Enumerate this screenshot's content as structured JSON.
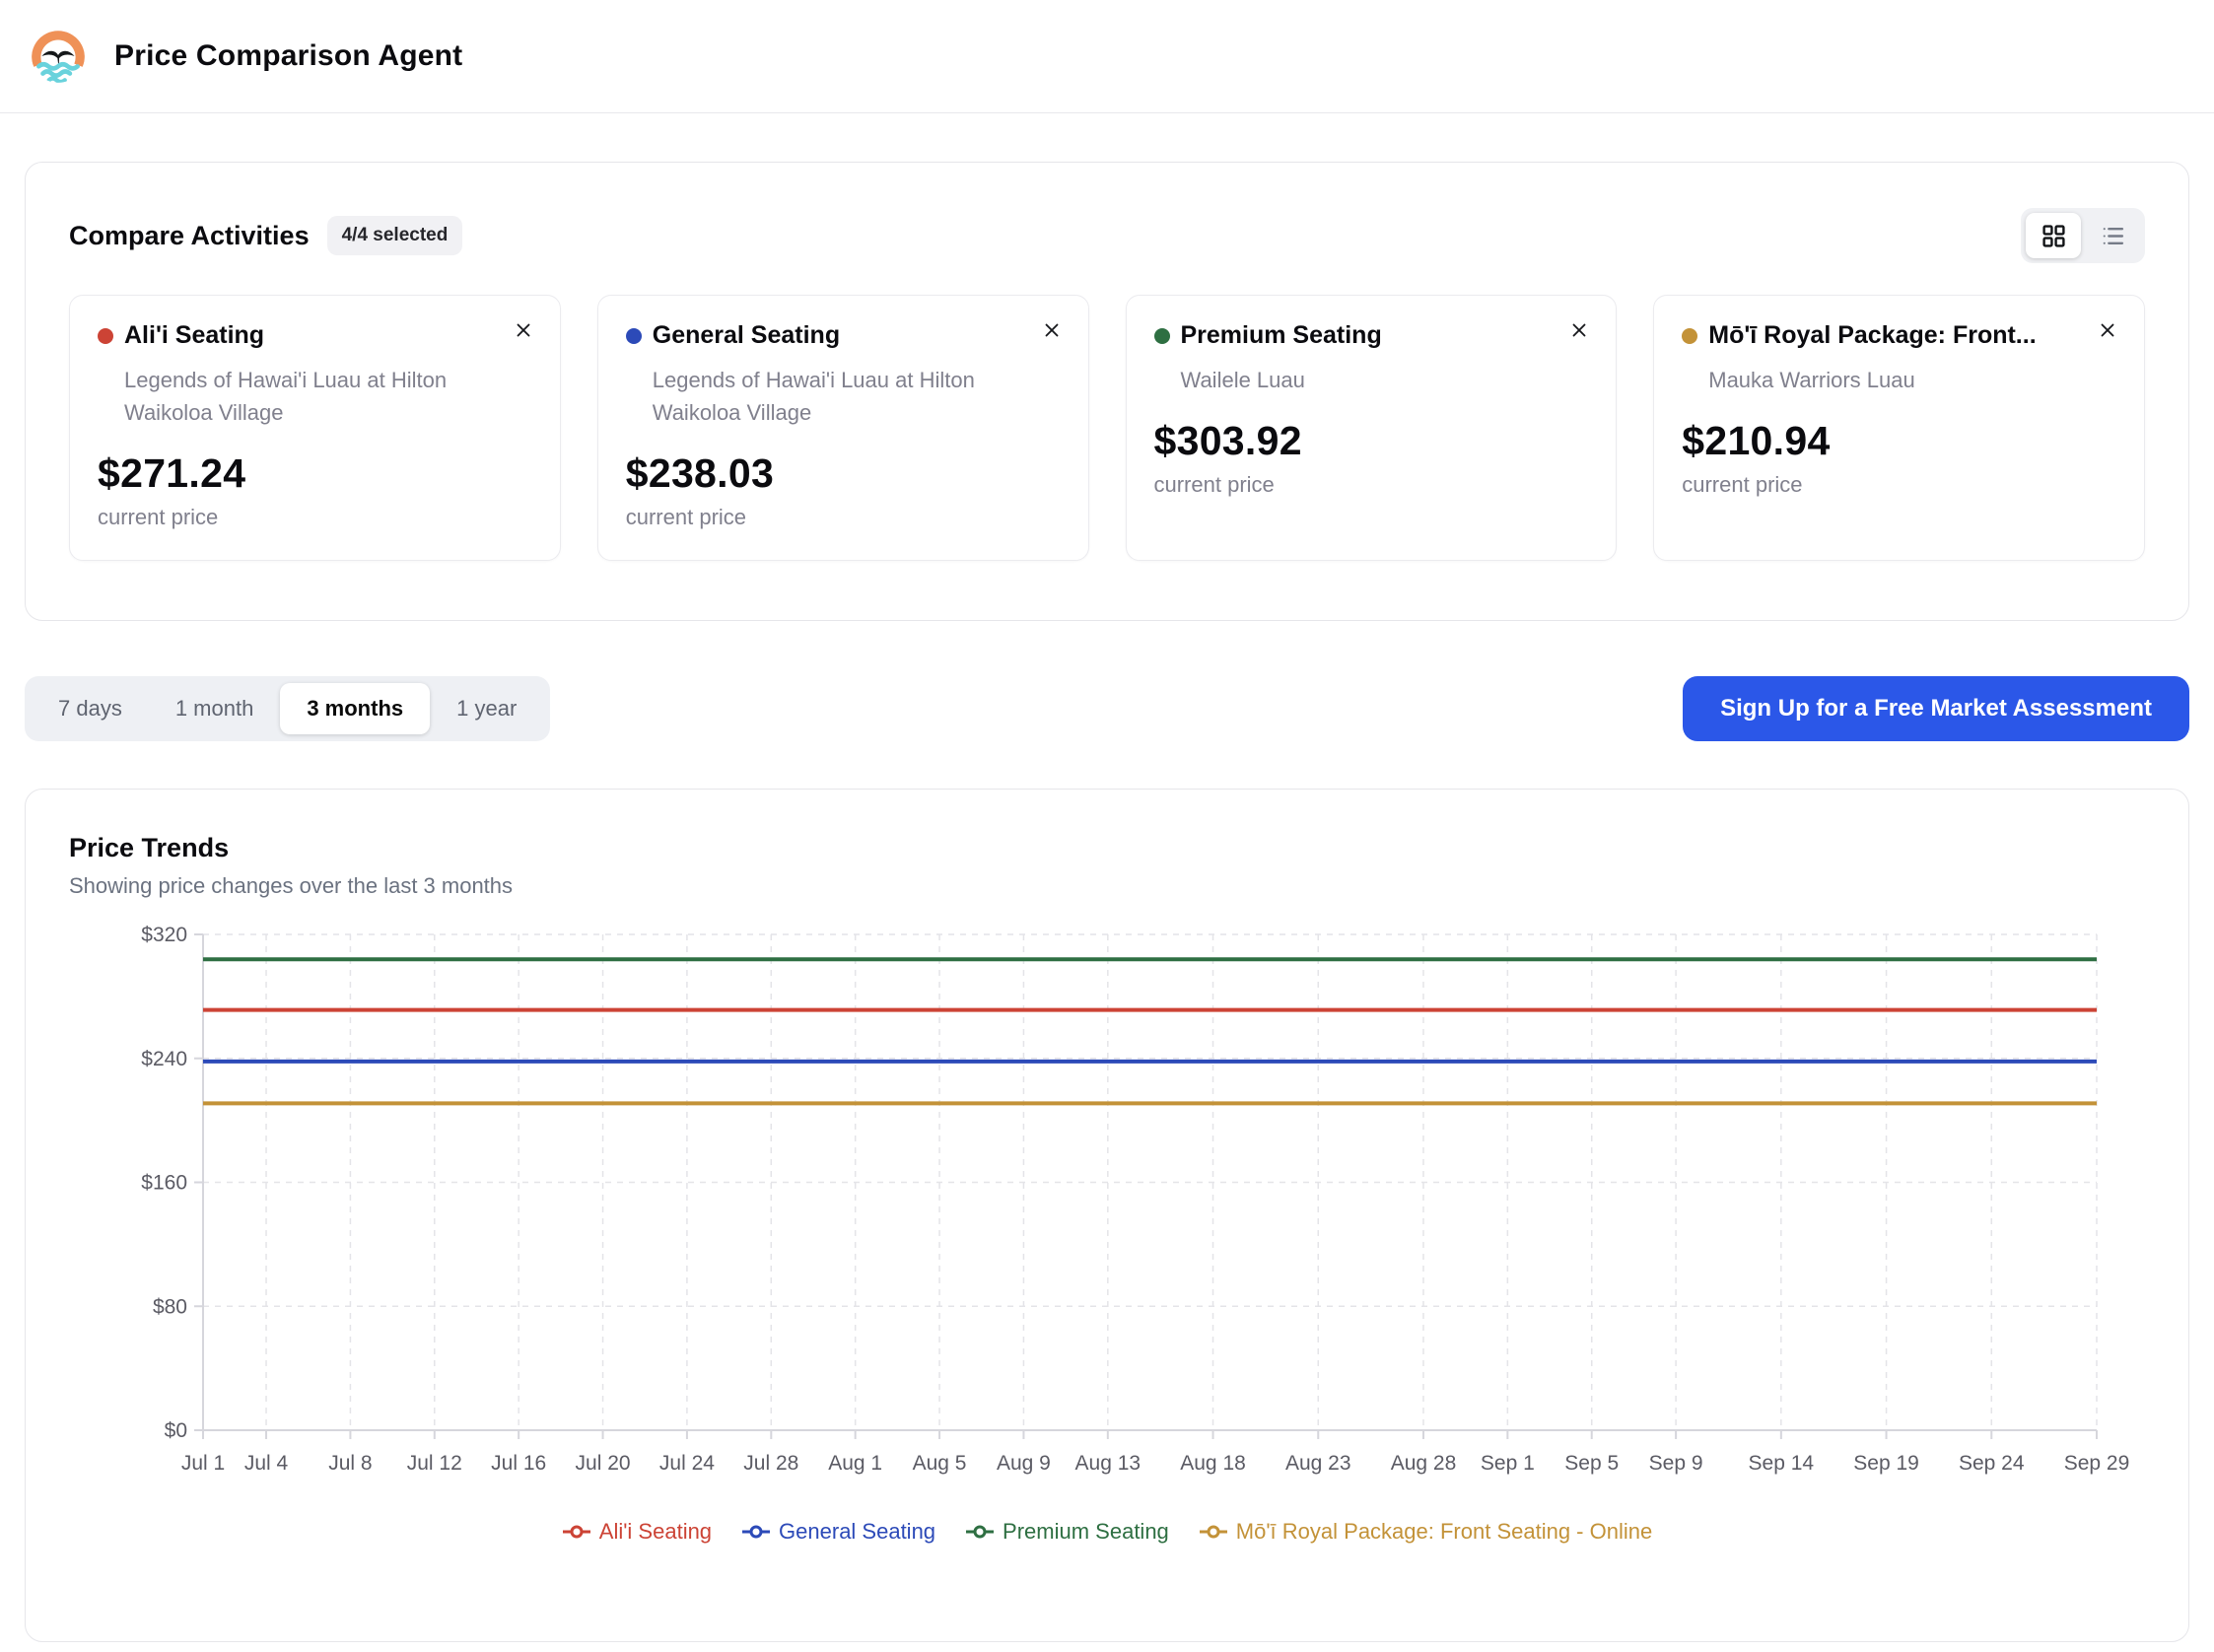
{
  "header": {
    "title": "Price Comparison Agent"
  },
  "compare_panel": {
    "title": "Compare Activities",
    "badge": "4/4 selected",
    "cards": [
      {
        "name": "Ali'i Seating",
        "venue": "Legends of Hawai'i Luau at Hilton Waikoloa Village",
        "price": "$271.24",
        "price_caption": "current price",
        "color": "#cc4335"
      },
      {
        "name": "General Seating",
        "venue": "Legends of Hawai'i Luau at Hilton Waikoloa Village",
        "price": "$238.03",
        "price_caption": "current price",
        "color": "#2c4ab8"
      },
      {
        "name": "Premium Seating",
        "venue": "Wailele Luau",
        "price": "$303.92",
        "price_caption": "current price",
        "color": "#2e6f42"
      },
      {
        "name": "Mō'ī Royal Package: Front...",
        "venue": "Mauka Warriors Luau",
        "price": "$210.94",
        "price_caption": "current price",
        "color": "#c39238"
      }
    ]
  },
  "range_tabs": {
    "options": [
      "7 days",
      "1 month",
      "3 months",
      "1 year"
    ],
    "selected": "3 months"
  },
  "cta": {
    "label": "Sign Up for a Free Market Assessment",
    "color": "#2b57e8"
  },
  "trends_panel": {
    "title": "Price Trends",
    "subtitle": "Showing price changes over the last 3 months"
  },
  "chart_data": {
    "type": "line",
    "title": "Price Trends",
    "x_tick_labels": [
      "Jul 1",
      "Jul 4",
      "Jul 8",
      "Jul 12",
      "Jul 16",
      "Jul 20",
      "Jul 24",
      "Jul 28",
      "Aug 1",
      "Aug 5",
      "Aug 9",
      "Aug 13",
      "Aug 18",
      "Aug 23",
      "Aug 28",
      "Sep 1",
      "Sep 5",
      "Sep 9",
      "Sep 14",
      "Sep 19",
      "Sep 24",
      "Sep 29"
    ],
    "x_tick_day_offsets": [
      0,
      3,
      7,
      11,
      15,
      19,
      23,
      27,
      31,
      35,
      39,
      43,
      48,
      53,
      58,
      62,
      66,
      70,
      75,
      80,
      85,
      90
    ],
    "x_domain_days": [
      0,
      90
    ],
    "y_tick_labels": [
      "$0",
      "$80",
      "$160",
      "$240",
      "$320"
    ],
    "y_tick_values": [
      0,
      80,
      160,
      240,
      320
    ],
    "ylim": [
      0,
      320
    ],
    "grid": "dashed",
    "legend_position": "bottom",
    "series": [
      {
        "name": "Ali'i Seating",
        "color": "#cc4335",
        "flat_value": 271.24
      },
      {
        "name": "General Seating",
        "color": "#2c4ab8",
        "flat_value": 238.03
      },
      {
        "name": "Premium Seating",
        "color": "#2e6f42",
        "flat_value": 303.92
      },
      {
        "name": "Mō'ī Royal Package: Front Seating - Online",
        "color": "#c39238",
        "flat_value": 210.94
      }
    ],
    "note": "All four series are flat (constant price) from Jul 1 through Sep 29"
  }
}
